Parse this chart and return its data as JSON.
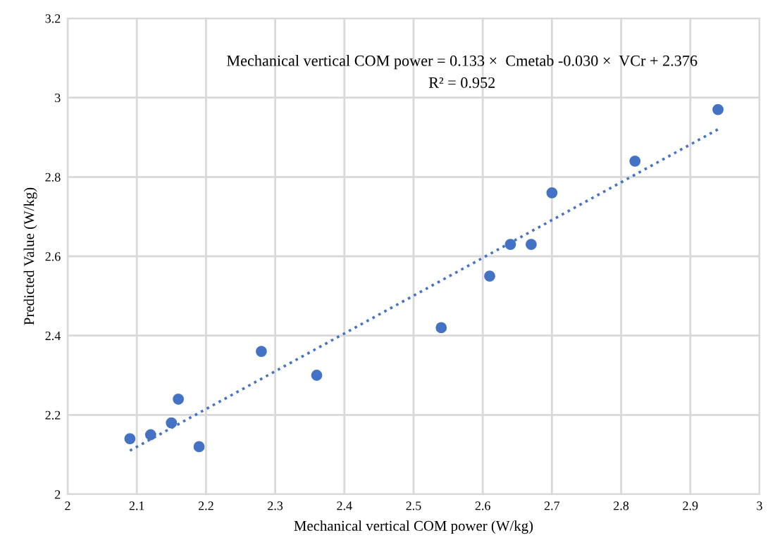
{
  "chart_data": {
    "type": "scatter",
    "xlabel": "Mechanical vertical COM power (W/kg)",
    "ylabel": "Predicted Value (W/kg)",
    "annotations": [
      "Mechanical vertical COM power = 0.133 ×  Cmetab -0.030 ×  VCr + 2.376",
      "R² = 0.952"
    ],
    "xlim": [
      2,
      3
    ],
    "xticks": [
      2,
      {
        "value": 2.1,
        "label": "2.1"
      },
      {
        "value": 2.2,
        "label": "2.2"
      },
      {
        "value": 2.3,
        "label": "2.3"
      },
      {
        "value": 2.4,
        "label": "2.4"
      },
      {
        "value": 2.5,
        "label": "2.5"
      },
      {
        "value": 2.6,
        "label": "2.6"
      },
      {
        "value": 2.7,
        "label": "2.7"
      },
      {
        "value": 2.8,
        "label": "2.8"
      },
      {
        "value": 2.9,
        "label": "2.9"
      },
      3
    ],
    "ylim": [
      2,
      3.2
    ],
    "yticks": [
      2,
      {
        "value": 2.2,
        "label": "2.2"
      },
      {
        "value": 2.4,
        "label": "2.4"
      },
      {
        "value": 2.6,
        "label": "2.6"
      },
      {
        "value": 2.8,
        "label": "2.8"
      },
      3,
      {
        "value": 3.2,
        "label": "3.2"
      }
    ],
    "grid": true,
    "marker": "circle",
    "legend": false,
    "series": [
      {
        "color": "#4472c4",
        "x": [
          2.09,
          2.12,
          2.15,
          2.16,
          2.19,
          2.28,
          2.36,
          2.54,
          2.61,
          2.64,
          2.67,
          2.7,
          2.82,
          2.94
        ],
        "values": [
          2.14,
          2.15,
          2.18,
          2.24,
          2.12,
          2.36,
          2.3,
          2.42,
          2.55,
          2.63,
          2.63,
          2.76,
          2.84,
          2.97
        ]
      },
      {
        "type": "line",
        "marker": "none",
        "line_style": "dotted",
        "color": "#4472c4",
        "x": [
          2.09,
          2.94
        ],
        "values": [
          2.11,
          2.92
        ]
      }
    ]
  }
}
